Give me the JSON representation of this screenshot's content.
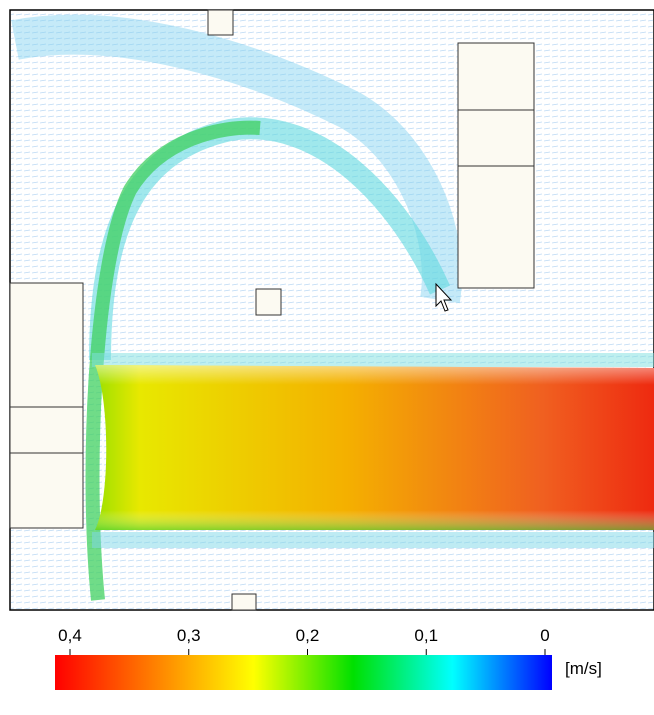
{
  "colorbar": {
    "lim": [
      0,
      0.4
    ],
    "ticks": [
      {
        "value": 0.4,
        "label": "0,4"
      },
      {
        "value": 0.3,
        "label": "0,3"
      },
      {
        "value": 0.2,
        "label": "0,2"
      },
      {
        "value": 0.1,
        "label": "0,1"
      },
      0
    ],
    "unit": "[m/s]",
    "colors": [
      "#ff0000",
      "#ff8000",
      "#ffff00",
      "#00e000",
      "#00ffff",
      "#0000ff"
    ]
  }
}
